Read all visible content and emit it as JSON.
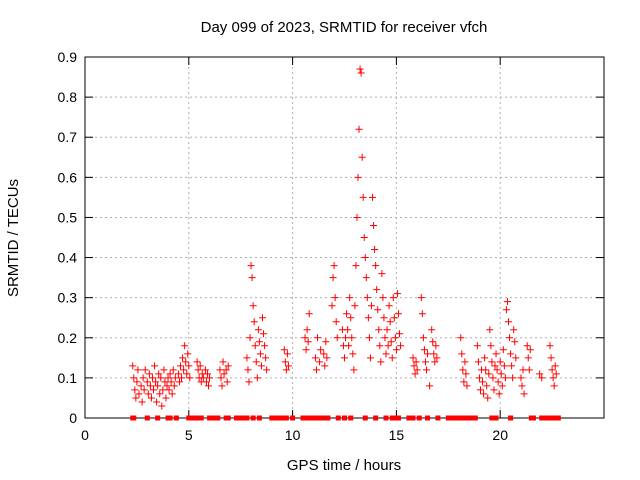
{
  "chart_data": {
    "type": "scatter",
    "title": "Day 099 of 2023, SRMTID for receiver vfch",
    "xlabel": "GPS time / hours",
    "ylabel": "SRMTID / TECUs",
    "xlim": [
      0,
      25
    ],
    "ylim": [
      0,
      0.9
    ],
    "xticks": [
      0,
      5,
      10,
      15,
      20
    ],
    "yticks": [
      0,
      0.1,
      0.2,
      0.3,
      0.4,
      0.5,
      0.6,
      0.7,
      0.8,
      0.9
    ],
    "grid": true,
    "marker": "+",
    "color": "#ff0000",
    "zero_marker": "square",
    "series": [
      {
        "name": "SRMTID",
        "points": [
          [
            2.3,
            0.13
          ],
          [
            2.35,
            0.1
          ],
          [
            2.4,
            0.07
          ],
          [
            2.45,
            0.05
          ],
          [
            2.5,
            0.09
          ],
          [
            2.55,
            0.12
          ],
          [
            2.6,
            0.06
          ],
          [
            2.7,
            0.08
          ],
          [
            2.75,
            0.04
          ],
          [
            2.8,
            0.1
          ],
          [
            2.85,
            0.07
          ],
          [
            2.9,
            0.12
          ],
          [
            3.0,
            0.09
          ],
          [
            3.05,
            0.06
          ],
          [
            3.1,
            0.11
          ],
          [
            3.15,
            0.08
          ],
          [
            3.2,
            0.05
          ],
          [
            3.25,
            0.1
          ],
          [
            3.3,
            0.07
          ],
          [
            3.35,
            0.13
          ],
          [
            3.4,
            0.09
          ],
          [
            3.45,
            0.04
          ],
          [
            3.5,
            0.08
          ],
          [
            3.55,
            0.11
          ],
          [
            3.6,
            0.06
          ],
          [
            3.65,
            0.1
          ],
          [
            3.7,
            0.03
          ],
          [
            3.75,
            0.07
          ],
          [
            3.8,
            0.12
          ],
          [
            3.85,
            0.09
          ],
          [
            3.9,
            0.05
          ],
          [
            3.95,
            0.08
          ],
          [
            4.0,
            0.1
          ],
          [
            4.05,
            0.07
          ],
          [
            4.1,
            0.11
          ],
          [
            4.15,
            0.09
          ],
          [
            4.2,
            0.06
          ],
          [
            4.25,
            0.12
          ],
          [
            4.3,
            0.08
          ],
          [
            4.35,
            0.1
          ],
          [
            4.5,
            0.11
          ],
          [
            4.55,
            0.09
          ],
          [
            4.6,
            0.13
          ],
          [
            4.65,
            0.1
          ],
          [
            4.7,
            0.15
          ],
          [
            4.75,
            0.12
          ],
          [
            4.8,
            0.18
          ],
          [
            4.85,
            0.14
          ],
          [
            4.9,
            0.11
          ],
          [
            4.95,
            0.16
          ],
          [
            5.0,
            0.13
          ],
          [
            5.05,
            0.1
          ],
          [
            5.4,
            0.14
          ],
          [
            5.45,
            0.12
          ],
          [
            5.5,
            0.1
          ],
          [
            5.55,
            0.13
          ],
          [
            5.6,
            0.09
          ],
          [
            5.65,
            0.11
          ],
          [
            5.7,
            0.1
          ],
          [
            5.8,
            0.12
          ],
          [
            5.85,
            0.09
          ],
          [
            5.9,
            0.11
          ],
          [
            5.95,
            0.08
          ],
          [
            6.0,
            0.1
          ],
          [
            6.5,
            0.12
          ],
          [
            6.55,
            0.1
          ],
          [
            6.6,
            0.08
          ],
          [
            6.65,
            0.14
          ],
          [
            6.7,
            0.11
          ],
          [
            6.8,
            0.12
          ],
          [
            6.85,
            0.09
          ],
          [
            6.9,
            0.13
          ],
          [
            7.8,
            0.15
          ],
          [
            7.85,
            0.12
          ],
          [
            7.9,
            0.09
          ],
          [
            7.95,
            0.2
          ],
          [
            8.0,
            0.38
          ],
          [
            8.05,
            0.35
          ],
          [
            8.1,
            0.28
          ],
          [
            8.15,
            0.24
          ],
          [
            8.2,
            0.18
          ],
          [
            8.25,
            0.14
          ],
          [
            8.3,
            0.1
          ],
          [
            8.35,
            0.22
          ],
          [
            8.4,
            0.19
          ],
          [
            8.45,
            0.16
          ],
          [
            8.5,
            0.13
          ],
          [
            8.55,
            0.25
          ],
          [
            8.6,
            0.21
          ],
          [
            8.65,
            0.18
          ],
          [
            8.7,
            0.15
          ],
          [
            8.75,
            0.12
          ],
          [
            9.6,
            0.17
          ],
          [
            9.65,
            0.14
          ],
          [
            9.7,
            0.12
          ],
          [
            9.75,
            0.16
          ],
          [
            9.8,
            0.13
          ],
          [
            10.6,
            0.2
          ],
          [
            10.65,
            0.17
          ],
          [
            10.7,
            0.22
          ],
          [
            10.75,
            0.19
          ],
          [
            10.8,
            0.26
          ],
          [
            11.1,
            0.15
          ],
          [
            11.15,
            0.12
          ],
          [
            11.2,
            0.2
          ],
          [
            11.3,
            0.14
          ],
          [
            11.35,
            0.17
          ],
          [
            11.5,
            0.16
          ],
          [
            11.55,
            0.13
          ],
          [
            11.6,
            0.19
          ],
          [
            11.65,
            0.15
          ],
          [
            11.9,
            0.28
          ],
          [
            11.95,
            0.35
          ],
          [
            12.0,
            0.38
          ],
          [
            12.05,
            0.3
          ],
          [
            12.1,
            0.24
          ],
          [
            12.15,
            0.2
          ],
          [
            12.4,
            0.22
          ],
          [
            12.45,
            0.18
          ],
          [
            12.5,
            0.15
          ],
          [
            12.55,
            0.2
          ],
          [
            12.6,
            0.26
          ],
          [
            12.65,
            0.22
          ],
          [
            12.7,
            0.18
          ],
          [
            12.75,
            0.3
          ],
          [
            12.8,
            0.25
          ],
          [
            12.85,
            0.2
          ],
          [
            12.9,
            0.16
          ],
          [
            12.95,
            0.12
          ],
          [
            13.0,
            0.28
          ],
          [
            13.05,
            0.38
          ],
          [
            13.1,
            0.5
          ],
          [
            13.15,
            0.6
          ],
          [
            13.2,
            0.72
          ],
          [
            13.25,
            0.87
          ],
          [
            13.3,
            0.86
          ],
          [
            13.35,
            0.65
          ],
          [
            13.4,
            0.55
          ],
          [
            13.45,
            0.45
          ],
          [
            13.5,
            0.4
          ],
          [
            13.55,
            0.35
          ],
          [
            13.6,
            0.3
          ],
          [
            13.65,
            0.25
          ],
          [
            13.7,
            0.2
          ],
          [
            13.75,
            0.15
          ],
          [
            13.8,
            0.28
          ],
          [
            13.85,
            0.55
          ],
          [
            13.9,
            0.48
          ],
          [
            13.95,
            0.42
          ],
          [
            14.0,
            0.38
          ],
          [
            14.05,
            0.32
          ],
          [
            14.1,
            0.27
          ],
          [
            14.15,
            0.22
          ],
          [
            14.2,
            0.18
          ],
          [
            14.25,
            0.14
          ],
          [
            14.3,
            0.36
          ],
          [
            14.35,
            0.3
          ],
          [
            14.4,
            0.25
          ],
          [
            14.45,
            0.2
          ],
          [
            14.5,
            0.16
          ],
          [
            14.55,
            0.22
          ],
          [
            14.6,
            0.18
          ],
          [
            14.65,
            0.28
          ],
          [
            14.7,
            0.24
          ],
          [
            14.75,
            0.19
          ],
          [
            14.8,
            0.15
          ],
          [
            14.85,
            0.3
          ],
          [
            14.9,
            0.25
          ],
          [
            14.95,
            0.2
          ],
          [
            15.0,
            0.17
          ],
          [
            15.05,
            0.31
          ],
          [
            15.1,
            0.26
          ],
          [
            15.15,
            0.21
          ],
          [
            15.2,
            0.18
          ],
          [
            15.8,
            0.15
          ],
          [
            15.85,
            0.13
          ],
          [
            15.9,
            0.11
          ],
          [
            15.95,
            0.14
          ],
          [
            16.0,
            0.12
          ],
          [
            16.2,
            0.3
          ],
          [
            16.25,
            0.26
          ],
          [
            16.3,
            0.2
          ],
          [
            16.35,
            0.17
          ],
          [
            16.4,
            0.14
          ],
          [
            16.45,
            0.12
          ],
          [
            16.5,
            0.16
          ],
          [
            16.6,
            0.08
          ],
          [
            16.7,
            0.22
          ],
          [
            16.75,
            0.19
          ],
          [
            16.8,
            0.16
          ],
          [
            16.85,
            0.14
          ],
          [
            16.9,
            0.18
          ],
          [
            16.95,
            0.15
          ],
          [
            18.1,
            0.2
          ],
          [
            18.15,
            0.16
          ],
          [
            18.2,
            0.12
          ],
          [
            18.25,
            0.09
          ],
          [
            18.3,
            0.14
          ],
          [
            18.35,
            0.11
          ],
          [
            18.4,
            0.08
          ],
          [
            18.9,
            0.18
          ],
          [
            18.95,
            0.14
          ],
          [
            19.0,
            0.1
          ],
          [
            19.05,
            0.07
          ],
          [
            19.1,
            0.12
          ],
          [
            19.15,
            0.09
          ],
          [
            19.2,
            0.06
          ],
          [
            19.25,
            0.15
          ],
          [
            19.3,
            0.12
          ],
          [
            19.35,
            0.08
          ],
          [
            19.4,
            0.05
          ],
          [
            19.45,
            0.11
          ],
          [
            19.5,
            0.22
          ],
          [
            19.55,
            0.18
          ],
          [
            19.6,
            0.14
          ],
          [
            19.65,
            0.1
          ],
          [
            19.7,
            0.07
          ],
          [
            19.75,
            0.13
          ],
          [
            19.8,
            0.16
          ],
          [
            19.85,
            0.12
          ],
          [
            19.9,
            0.09
          ],
          [
            19.95,
            0.06
          ],
          [
            20.0,
            0.14
          ],
          [
            20.05,
            0.11
          ],
          [
            20.1,
            0.08
          ],
          [
            20.15,
            0.17
          ],
          [
            20.2,
            0.13
          ],
          [
            20.25,
            0.1
          ],
          [
            20.3,
            0.27
          ],
          [
            20.35,
            0.29
          ],
          [
            20.4,
            0.24
          ],
          [
            20.45,
            0.2
          ],
          [
            20.5,
            0.16
          ],
          [
            20.55,
            0.13
          ],
          [
            20.6,
            0.1
          ],
          [
            20.65,
            0.22
          ],
          [
            20.7,
            0.19
          ],
          [
            20.75,
            0.15
          ],
          [
            21.0,
            0.1
          ],
          [
            21.05,
            0.08
          ],
          [
            21.1,
            0.12
          ],
          [
            21.15,
            0.06
          ],
          [
            21.3,
            0.18
          ],
          [
            21.35,
            0.15
          ],
          [
            21.4,
            0.12
          ],
          [
            21.45,
            0.17
          ],
          [
            21.9,
            0.11
          ],
          [
            22.0,
            0.1
          ],
          [
            22.4,
            0.18
          ],
          [
            22.45,
            0.15
          ],
          [
            22.5,
            0.12
          ],
          [
            22.55,
            0.1
          ],
          [
            22.6,
            0.08
          ],
          [
            22.65,
            0.13
          ],
          [
            22.7,
            0.11
          ]
        ]
      }
    ],
    "zero_points": [
      2.3,
      2.35,
      3.0,
      3.5,
      4.0,
      4.1,
      4.4,
      5.0,
      5.2,
      5.3,
      5.4,
      5.5,
      5.6,
      6.0,
      6.2,
      6.3,
      6.4,
      6.8,
      6.9,
      7.3,
      7.4,
      7.5,
      7.6,
      7.8,
      8.1,
      8.4,
      9.0,
      9.1,
      9.2,
      9.3,
      9.4,
      9.5,
      9.6,
      9.7,
      10.0,
      10.5,
      10.6,
      10.7,
      10.8,
      10.9,
      11.0,
      11.1,
      11.2,
      11.3,
      11.4,
      11.5,
      11.6,
      11.7,
      12.2,
      12.5,
      12.8,
      13.5,
      14.0,
      14.5,
      14.8,
      15.0,
      15.1,
      15.6,
      15.8,
      16.1,
      16.5,
      17.0,
      17.5,
      17.6,
      17.7,
      17.8,
      17.9,
      18.0,
      18.2,
      18.4,
      18.6,
      18.8,
      19.6,
      19.8,
      20.5,
      21.5,
      21.6,
      22.0,
      22.2,
      22.4,
      22.6,
      22.8
    ]
  }
}
